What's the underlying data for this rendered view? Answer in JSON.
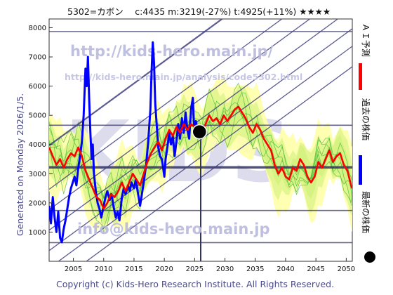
{
  "header": {
    "text": "5302=カボン　 c:4435  m:3219(-27%)  t:4925(+11%)  ★★★★"
  },
  "side_text": "Generated on Monday 2026/1/5.",
  "footer": "Copyright (c) Kids-Hero Research Institute. All Rights Reserved.",
  "watermarks": {
    "url": "http://kids-hero.main.jp/",
    "analysis_url": "http://kids-hero.main.jp/analysis/code5302.html",
    "email": "info@kids-hero.main.jp",
    "big": "KIDS"
  },
  "legend": {
    "forecast": "ＡＩ予測",
    "past": "過去の株価",
    "latest": "最新の株価"
  },
  "colors": {
    "forecast": "#ff0000",
    "past": "#0000ff",
    "latest": "#000000",
    "green_band": "#ccee77",
    "yellow_band": "#ffffaa",
    "green_line": "#44bb33",
    "reference_line": "#333366",
    "trend_line": "#404080",
    "text": "#333366"
  },
  "chart_data": {
    "type": "line",
    "title": "5302=カボン",
    "xlim": [
      2001,
      2051
    ],
    "ylim": [
      0,
      8300
    ],
    "x_ticks": [
      2005,
      2010,
      2015,
      2020,
      2025,
      2030,
      2035,
      2040,
      2045,
      2050
    ],
    "y_ticks": [
      1000,
      2000,
      3000,
      4000,
      5000,
      6000,
      7000,
      8000
    ],
    "horizontal_reference_levels": [
      7870,
      4660,
      3219,
      1740,
      640
    ],
    "current_year": 2026,
    "latest_point": {
      "x": 2025.8,
      "y": 4435
    },
    "series": [
      {
        "name": "過去の株価",
        "points": [
          [
            2001.0,
            1900
          ],
          [
            2001.3,
            1300
          ],
          [
            2001.6,
            2200
          ],
          [
            2001.9,
            1500
          ],
          [
            2002.2,
            1000
          ],
          [
            2002.5,
            1700
          ],
          [
            2002.8,
            800
          ],
          [
            2003.1,
            650
          ],
          [
            2003.4,
            1100
          ],
          [
            2003.7,
            1400
          ],
          [
            2004.0,
            1800
          ],
          [
            2004.3,
            2200
          ],
          [
            2004.6,
            2500
          ],
          [
            2004.9,
            2700
          ],
          [
            2005.2,
            2900
          ],
          [
            2005.5,
            2600
          ],
          [
            2005.8,
            3200
          ],
          [
            2006.1,
            3600
          ],
          [
            2006.4,
            4100
          ],
          [
            2006.7,
            5000
          ],
          [
            2007.0,
            6600
          ],
          [
            2007.2,
            6000
          ],
          [
            2007.4,
            7000
          ],
          [
            2007.6,
            5600
          ],
          [
            2007.8,
            4400
          ],
          [
            2008.0,
            3500
          ],
          [
            2008.2,
            4000
          ],
          [
            2008.4,
            3000
          ],
          [
            2008.7,
            2400
          ],
          [
            2009.0,
            2000
          ],
          [
            2009.3,
            1800
          ],
          [
            2009.6,
            1500
          ],
          [
            2010.0,
            1900
          ],
          [
            2010.3,
            2200
          ],
          [
            2010.6,
            2400
          ],
          [
            2011.0,
            2100
          ],
          [
            2011.3,
            2300
          ],
          [
            2011.6,
            1900
          ],
          [
            2012.0,
            1500
          ],
          [
            2012.3,
            1700
          ],
          [
            2012.6,
            1400
          ],
          [
            2013.0,
            2200
          ],
          [
            2013.3,
            2500
          ],
          [
            2013.6,
            2300
          ],
          [
            2014.0,
            2600
          ],
          [
            2014.3,
            2400
          ],
          [
            2014.6,
            2700
          ],
          [
            2015.0,
            2500
          ],
          [
            2015.3,
            2800
          ],
          [
            2015.6,
            2400
          ],
          [
            2016.0,
            1900
          ],
          [
            2016.3,
            2300
          ],
          [
            2016.6,
            2700
          ],
          [
            2017.0,
            3300
          ],
          [
            2017.3,
            4000
          ],
          [
            2017.5,
            4600
          ],
          [
            2017.7,
            5200
          ],
          [
            2017.9,
            6500
          ],
          [
            2018.1,
            7500
          ],
          [
            2018.3,
            6800
          ],
          [
            2018.5,
            5400
          ],
          [
            2018.8,
            4500
          ],
          [
            2019.0,
            3900
          ],
          [
            2019.3,
            3600
          ],
          [
            2019.6,
            3500
          ],
          [
            2020.0,
            2900
          ],
          [
            2020.2,
            3500
          ],
          [
            2020.5,
            3900
          ],
          [
            2020.8,
            4400
          ],
          [
            2021.1,
            4000
          ],
          [
            2021.4,
            4300
          ],
          [
            2021.7,
            3600
          ],
          [
            2022.0,
            4100
          ],
          [
            2022.3,
            4700
          ],
          [
            2022.6,
            4200
          ],
          [
            2022.9,
            4900
          ],
          [
            2023.2,
            4400
          ],
          [
            2023.5,
            5100
          ],
          [
            2023.8,
            4500
          ],
          [
            2024.1,
            4200
          ],
          [
            2024.4,
            5200
          ],
          [
            2024.7,
            5600
          ],
          [
            2024.9,
            4600
          ],
          [
            2025.2,
            4800
          ],
          [
            2025.5,
            4500
          ],
          [
            2025.8,
            4435
          ]
        ]
      },
      {
        "name": "ＡＩ予測",
        "points": [
          [
            2001.0,
            3900
          ],
          [
            2001.6,
            3600
          ],
          [
            2002.2,
            3300
          ],
          [
            2002.8,
            3500
          ],
          [
            2003.4,
            3200
          ],
          [
            2004.0,
            3500
          ],
          [
            2004.6,
            3700
          ],
          [
            2005.2,
            3600
          ],
          [
            2005.8,
            3900
          ],
          [
            2006.4,
            3600
          ],
          [
            2007.0,
            3100
          ],
          [
            2007.6,
            2800
          ],
          [
            2008.2,
            2500
          ],
          [
            2008.8,
            2200
          ],
          [
            2009.4,
            2100
          ],
          [
            2010.0,
            1800
          ],
          [
            2010.6,
            2000
          ],
          [
            2011.2,
            2300
          ],
          [
            2011.8,
            2200
          ],
          [
            2012.4,
            2400
          ],
          [
            2013.0,
            2700
          ],
          [
            2013.6,
            2400
          ],
          [
            2014.2,
            2700
          ],
          [
            2014.8,
            3000
          ],
          [
            2015.4,
            2800
          ],
          [
            2016.0,
            2600
          ],
          [
            2016.6,
            3000
          ],
          [
            2017.2,
            3400
          ],
          [
            2017.8,
            3700
          ],
          [
            2018.4,
            3900
          ],
          [
            2019.0,
            4100
          ],
          [
            2019.6,
            3800
          ],
          [
            2020.2,
            4200
          ],
          [
            2020.8,
            4500
          ],
          [
            2021.4,
            4300
          ],
          [
            2022.0,
            4600
          ],
          [
            2022.6,
            4400
          ],
          [
            2023.2,
            4700
          ],
          [
            2023.8,
            4500
          ],
          [
            2024.4,
            4700
          ],
          [
            2025.0,
            4600
          ],
          [
            2025.6,
            4500
          ],
          [
            2026.2,
            4400
          ],
          [
            2026.8,
            4700
          ],
          [
            2027.4,
            5000
          ],
          [
            2028.0,
            4800
          ],
          [
            2028.6,
            4900
          ],
          [
            2029.2,
            4700
          ],
          [
            2029.8,
            5000
          ],
          [
            2030.4,
            4800
          ],
          [
            2031.0,
            5000
          ],
          [
            2031.6,
            5200
          ],
          [
            2032.2,
            5300
          ],
          [
            2032.8,
            5100
          ],
          [
            2033.4,
            4900
          ],
          [
            2034.0,
            4600
          ],
          [
            2034.6,
            4400
          ],
          [
            2035.2,
            4700
          ],
          [
            2035.8,
            4500
          ],
          [
            2036.4,
            4200
          ],
          [
            2037.0,
            4000
          ],
          [
            2037.6,
            3800
          ],
          [
            2038.2,
            3300
          ],
          [
            2038.8,
            3000
          ],
          [
            2039.4,
            3200
          ],
          [
            2040.0,
            2900
          ],
          [
            2040.6,
            2800
          ],
          [
            2041.2,
            3200
          ],
          [
            2041.8,
            3100
          ],
          [
            2042.4,
            3500
          ],
          [
            2043.0,
            3300
          ],
          [
            2043.6,
            2900
          ],
          [
            2044.2,
            2700
          ],
          [
            2044.8,
            2900
          ],
          [
            2045.4,
            3400
          ],
          [
            2046.0,
            3200
          ],
          [
            2046.6,
            3500
          ],
          [
            2047.2,
            3800
          ],
          [
            2047.8,
            3400
          ],
          [
            2048.4,
            3600
          ],
          [
            2049.0,
            3700
          ],
          [
            2049.6,
            3300
          ],
          [
            2050.2,
            3100
          ],
          [
            2050.8,
            2600
          ],
          [
            2051.0,
            2500
          ]
        ]
      }
    ]
  }
}
